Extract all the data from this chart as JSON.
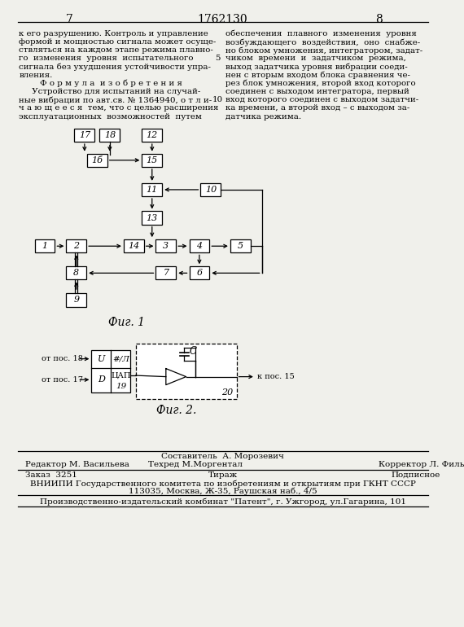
{
  "page_number_left": "7",
  "page_number_center": "1762130",
  "page_number_right": "8",
  "text_left_col": [
    "к его разрушению. Контроль и управление",
    "формой и мощностью сигнала может осуще-",
    "ствляться на каждом этапе режима плавно-",
    "го  изменения  уровня  испытательного",
    "сигнала без ухудшения устойчивости упра-",
    "вления.",
    "        Ф о р м у л а  и з о б р е т е н и я",
    "     Устройство для испытаний на случай-",
    "ные вибрации по авт.св. № 1364940, о т л и-",
    "ч а ю щ е е с я  тем, что с целью расширения",
    "эксплуатационных  возможностей  путем"
  ],
  "text_right_col": [
    "обеспечения  плавного  изменения  уровня",
    "возбуждающего  воздействия,  оно  снабже-",
    "но блоком умножения, интегратором, задат-",
    "чиком  времени  и  задатчиком  режима,",
    "выход задатчика уровня вибрации соеди-",
    "нен с вторым входом блока сравнения че-",
    "рез блок умножения, второй вход которого",
    "соединен с выходом интегратора, первый",
    "вход которого соединен с выходом задатчи-",
    "ка времени, а второй вход – с выходом за-",
    "датчика режима."
  ],
  "fig1_caption": "Фиг. 1",
  "fig2_caption": "Фиг. 2.",
  "footer_line1_sestavitel": "Составитель  А. Морозевич",
  "footer_line1_left": "Редактор М. Васильева",
  "footer_line1_center": "Техред М.Моргентал",
  "footer_line1_right": "Корректор Л. Филь",
  "footer_line2_left": "Заказ  3251",
  "footer_line2_center": "Тираж",
  "footer_line2_right": "Подписное",
  "footer_line3": "ВНИИПИ Государственного комитета по изобретениям и открытиям при ГКНТ СССР",
  "footer_line4": "113035, Москва, Ж-35, Раушская наб., 4/5",
  "footer_line5": "Производственно-издательский комбинат \"Патент\", г. Ужгород, ул.Гагарина, 101",
  "bg_color": "#f0f0eb"
}
